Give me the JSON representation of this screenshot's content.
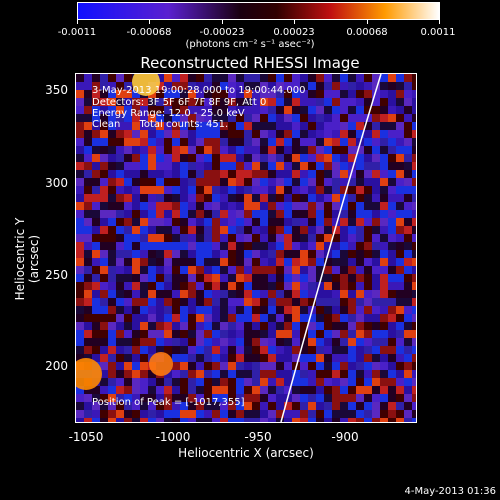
{
  "colorbar": {
    "tick_labels": [
      "-0.0011",
      "-0.00068",
      "-0.00023",
      "0.00023",
      "0.00068",
      "0.0011"
    ],
    "units": "(photons cm⁻² s⁻¹ asec⁻²)"
  },
  "title": "Reconstructed RHESSI Image",
  "info": {
    "time": "3-May-2013 19:00:28.000 to 19:00:44.000",
    "detectors": "Detectors: 3F 5F 6F 7F 8F 9F, Att 0",
    "energy": "Energy Range: 12.0 - 25.0 keV",
    "clean": "Clean      Total counts: 451.",
    "peak": "Position of Peak = [-1017,355]"
  },
  "axes": {
    "xlabel": "Heliocentric X (arcsec)",
    "ylabel": "Heliocentric Y (arcsec)",
    "x_ticks": [
      "-1050",
      "-1000",
      "-950",
      "-900"
    ],
    "y_ticks": [
      "350",
      "300",
      "250",
      "200"
    ]
  },
  "footer": {
    "timestamp": "4-May-2013 01:36"
  }
}
